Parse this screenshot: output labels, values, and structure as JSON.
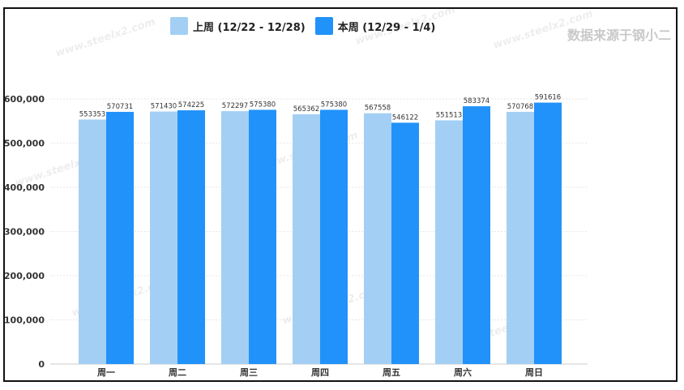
{
  "source_text": "数据来源于钢小二",
  "watermark_text": "www.steelx2.com",
  "colors": {
    "prev_week": "#a3cff4",
    "this_week": "#2192f9",
    "grid": "#e6e6e6",
    "text": "#333333"
  },
  "chart_data": {
    "type": "bar",
    "title": "",
    "xlabel": "",
    "ylabel": "",
    "categories": [
      "周一",
      "周二",
      "周三",
      "周四",
      "周五",
      "周六",
      "周日"
    ],
    "series": [
      {
        "name": "上周 (12/22 - 12/28)",
        "values": [
          553353,
          571430,
          572297,
          565362,
          567558,
          551513,
          570768
        ]
      },
      {
        "name": "本周 (12/29 - 1/4)",
        "values": [
          570731,
          574225,
          575380,
          575380,
          546122,
          583374,
          591616
        ]
      }
    ],
    "ylim": [
      0,
      600000
    ],
    "yticks": [
      0,
      100000,
      200000,
      300000,
      400000,
      500000,
      600000
    ],
    "ytick_labels": [
      "0",
      "100,000",
      "200,000",
      "300,000",
      "400,000",
      "500,000",
      "600,000"
    ],
    "grid": true,
    "legend_position": "top-center"
  }
}
